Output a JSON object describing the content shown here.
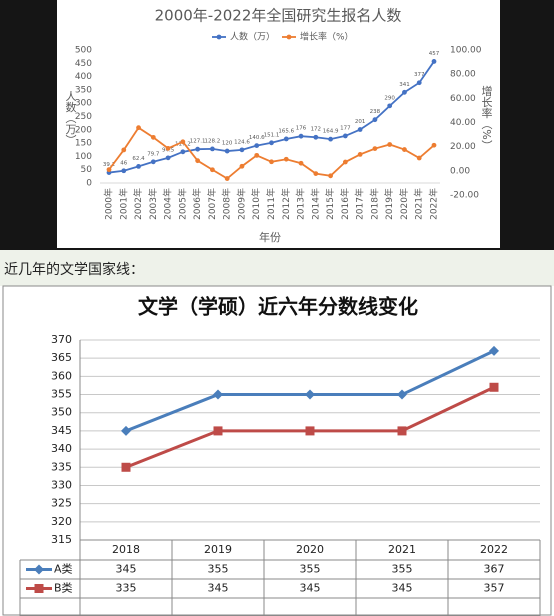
{
  "caption": "近几年的文学国家线：",
  "chart_data": [
    {
      "type": "line",
      "title": "2000年-2022年全国研究生报名人数",
      "categories": [
        "2000年",
        "2001年",
        "2002年",
        "2003年",
        "2004年",
        "2005年",
        "2006年",
        "2007年",
        "2008年",
        "2009年",
        "2010年",
        "2011年",
        "2012年",
        "2013年",
        "2014年",
        "2015年",
        "2016年",
        "2017年",
        "2018年",
        "2019年",
        "2020年",
        "2021年",
        "2022年"
      ],
      "series": [
        {
          "name": "人数（万）",
          "color": "#4472c4",
          "values": [
            39.2,
            46,
            62.4,
            79.7,
            94.5,
            117.2,
            127.1,
            128.2,
            120,
            124.6,
            140.6,
            151.1,
            165.6,
            176,
            172,
            164.9,
            177,
            201,
            238,
            290,
            341,
            377,
            457
          ]
        },
        {
          "name": "增长率（%）",
          "color": "#ed7d31",
          "axis": "y2",
          "values": [
            1,
            17.3,
            35.7,
            27.7,
            18.6,
            24,
            8.4,
            0.9,
            -6.4,
            3.8,
            12.8,
            7.5,
            9.6,
            6.3,
            -2.3,
            -4.1,
            7.3,
            13.6,
            18.4,
            21.8,
            17.6,
            10.6,
            21.2
          ]
        }
      ],
      "ylim": [
        0,
        500
      ],
      "yticks": [
        0,
        50,
        100,
        150,
        200,
        250,
        300,
        350,
        400,
        450,
        500
      ],
      "y2lim": [
        -20,
        100
      ],
      "y2ticks": [
        {
          "value": -20,
          "label": "-20.00"
        },
        {
          "value": 0,
          "label": "0.00"
        },
        {
          "value": 20,
          "label": "20.00"
        },
        {
          "value": 40,
          "label": "40.00"
        },
        {
          "value": 60,
          "label": "60.00"
        },
        {
          "value": 80,
          "label": "80.00"
        },
        {
          "value": 100,
          "label": "100.00"
        }
      ],
      "ylabel": "人数（万）",
      "y2label": "增长率（%）",
      "xlabel": "年份",
      "legend": "top",
      "grid": false
    },
    {
      "type": "line",
      "title": "文学（学硕）近六年分数线变化",
      "categories": [
        "2018",
        "2019",
        "2020",
        "2021",
        "2022"
      ],
      "series": [
        {
          "name": "A类",
          "color": "#4a7ebb",
          "values": [
            345,
            355,
            355,
            355,
            367
          ]
        },
        {
          "name": "B类",
          "color": "#be4b48",
          "values": [
            335,
            345,
            345,
            345,
            357
          ]
        }
      ],
      "ylim": [
        315,
        370
      ],
      "yticks": [
        315,
        320,
        325,
        330,
        335,
        340,
        345,
        350,
        355,
        360,
        365,
        370
      ],
      "grid": true,
      "legend": "table"
    }
  ]
}
